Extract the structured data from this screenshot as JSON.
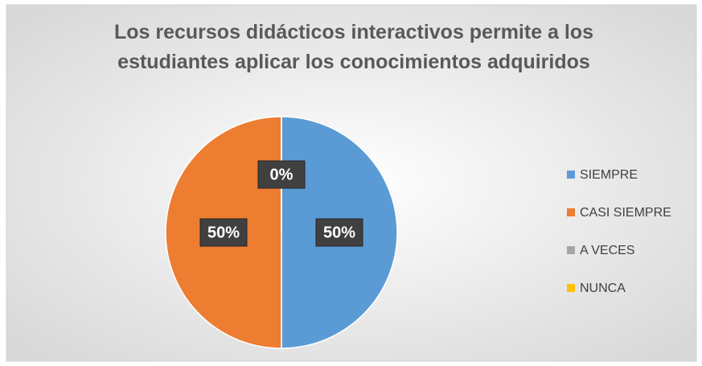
{
  "chart_data": {
    "type": "pie",
    "title": "Los recursos didácticos interactivos permite a los estudiantes aplicar los conocimientos adquiridos",
    "categories": [
      "SIEMPRE",
      "CASI SIEMPRE",
      "A VECES",
      "NUNCA"
    ],
    "values": [
      50,
      50,
      0,
      0
    ],
    "value_labels": [
      "50%",
      "50%",
      "0%",
      "0%"
    ],
    "colors": [
      "#5b9bd5",
      "#ed7d31",
      "#a5a5a5",
      "#ffc000"
    ],
    "legend": "right"
  }
}
